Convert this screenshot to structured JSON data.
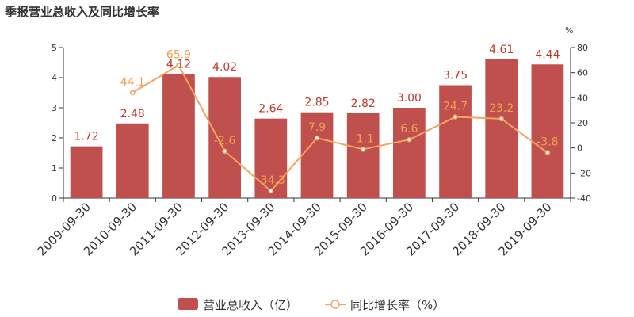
{
  "title": "季报营业总收入及同比增长率",
  "chart_data": {
    "type": "bar",
    "title": "季报营业总收入及同比增长率",
    "categories": [
      "2009-09-30",
      "2010-09-30",
      "2011-09-30",
      "2012-09-30",
      "2013-09-30",
      "2014-09-30",
      "2015-09-30",
      "2016-09-30",
      "2017-09-30",
      "2018-09-30",
      "2019-09-30"
    ],
    "series": [
      {
        "name": "营业总收入（亿）",
        "type": "bar",
        "axis": "left",
        "color": "#c0504d",
        "values": [
          1.72,
          2.48,
          4.12,
          4.02,
          2.64,
          2.85,
          2.82,
          3.0,
          3.75,
          4.61,
          4.44
        ],
        "labels": [
          "1.72",
          "2.48",
          "4.12",
          "4.02",
          "2.64",
          "2.85",
          "2.82",
          "3.00",
          "3.75",
          "4.61",
          "4.44"
        ]
      },
      {
        "name": "同比增长率（%）",
        "type": "line",
        "axis": "right",
        "color": "#f4a460",
        "values": [
          null,
          44.1,
          65.9,
          -2.6,
          -34.3,
          7.9,
          -1.1,
          6.6,
          24.7,
          23.2,
          -3.8
        ],
        "labels": [
          null,
          "44.1",
          "65.9",
          "-2.6",
          "-34.3",
          "7.9",
          "-1.1",
          "6.6",
          "24.7",
          "23.2",
          "-3.8"
        ]
      }
    ],
    "yleft": {
      "min": 0,
      "max": 5,
      "ticks": [
        "0",
        "1",
        "2",
        "3",
        "4",
        "5"
      ]
    },
    "yright": {
      "min": -40,
      "max": 80,
      "ticks": [
        "-40",
        "-20",
        "0",
        "20",
        "40",
        "60",
        "80"
      ],
      "unit": "%"
    },
    "legend": {
      "position": "bottom-center",
      "items": [
        "营业总收入（亿）",
        "同比增长率（%）"
      ]
    },
    "grid": false
  }
}
